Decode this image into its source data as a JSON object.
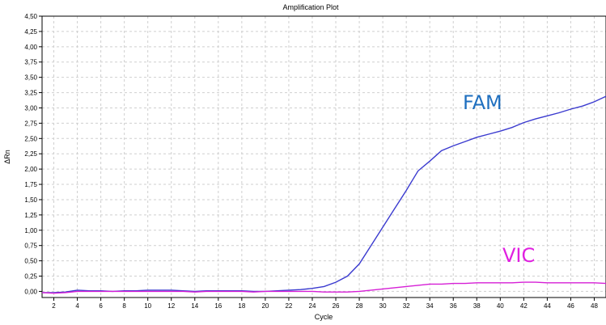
{
  "chart_data": {
    "type": "line",
    "title": "Amplification Plot",
    "xlabel": "Cycle",
    "ylabel": "ΔRn",
    "xlim": [
      1,
      49
    ],
    "ylim": [
      -0.1,
      4.5
    ],
    "grid": true,
    "x_ticks": [
      2,
      4,
      6,
      8,
      10,
      12,
      14,
      16,
      18,
      20,
      22,
      24,
      26,
      28,
      30,
      32,
      34,
      36,
      38,
      40,
      42,
      44,
      46,
      48
    ],
    "y_ticks": [
      "0,00",
      "0,25",
      "0,50",
      "0,75",
      "1,00",
      "1,25",
      "1,50",
      "1,75",
      "2,00",
      "2,25",
      "2,50",
      "2,75",
      "3,00",
      "3,25",
      "3,50",
      "3,75",
      "4,00",
      "4,25",
      "4,50"
    ],
    "series": [
      {
        "name": "FAM",
        "color": "#3a3acf",
        "label_color": "#1f6fbf",
        "x": [
          1,
          2,
          3,
          4,
          5,
          6,
          7,
          8,
          9,
          10,
          11,
          12,
          13,
          14,
          15,
          16,
          17,
          18,
          19,
          20,
          21,
          22,
          23,
          24,
          25,
          26,
          27,
          28,
          29,
          30,
          31,
          32,
          33,
          34,
          35,
          36,
          37,
          38,
          39,
          40,
          41,
          42,
          43,
          44,
          45,
          46,
          47,
          48,
          49
        ],
        "y": [
          -0.02,
          -0.02,
          -0.01,
          0.02,
          0.01,
          0.01,
          0.0,
          0.01,
          0.01,
          0.02,
          0.02,
          0.02,
          0.01,
          0.0,
          0.01,
          0.01,
          0.01,
          0.01,
          0.0,
          0.0,
          0.01,
          0.02,
          0.03,
          0.05,
          0.08,
          0.15,
          0.25,
          0.45,
          0.75,
          1.05,
          1.35,
          1.65,
          1.97,
          2.13,
          2.3,
          2.38,
          2.45,
          2.52,
          2.57,
          2.62,
          2.68,
          2.76,
          2.82,
          2.87,
          2.92,
          2.98,
          3.03,
          3.1,
          3.19
        ]
      },
      {
        "name": "VIC",
        "color": "#d61fd6",
        "label_color": "#e020e0",
        "x": [
          1,
          2,
          3,
          4,
          5,
          6,
          7,
          8,
          9,
          10,
          11,
          12,
          13,
          14,
          15,
          16,
          17,
          18,
          19,
          20,
          21,
          22,
          23,
          24,
          25,
          26,
          27,
          28,
          29,
          30,
          31,
          32,
          33,
          34,
          35,
          36,
          37,
          38,
          39,
          40,
          41,
          42,
          43,
          44,
          45,
          46,
          47,
          48,
          49
        ],
        "y": [
          -0.02,
          -0.03,
          -0.02,
          0.0,
          0.0,
          0.0,
          0.0,
          0.0,
          0.0,
          0.0,
          0.0,
          0.0,
          0.0,
          -0.01,
          0.0,
          0.0,
          0.0,
          0.0,
          -0.01,
          0.0,
          0.0,
          0.0,
          0.0,
          0.0,
          -0.01,
          -0.01,
          -0.01,
          0.0,
          0.02,
          0.04,
          0.06,
          0.08,
          0.1,
          0.12,
          0.12,
          0.13,
          0.13,
          0.14,
          0.14,
          0.14,
          0.14,
          0.15,
          0.15,
          0.14,
          0.14,
          0.14,
          0.14,
          0.14,
          0.13
        ]
      }
    ]
  }
}
